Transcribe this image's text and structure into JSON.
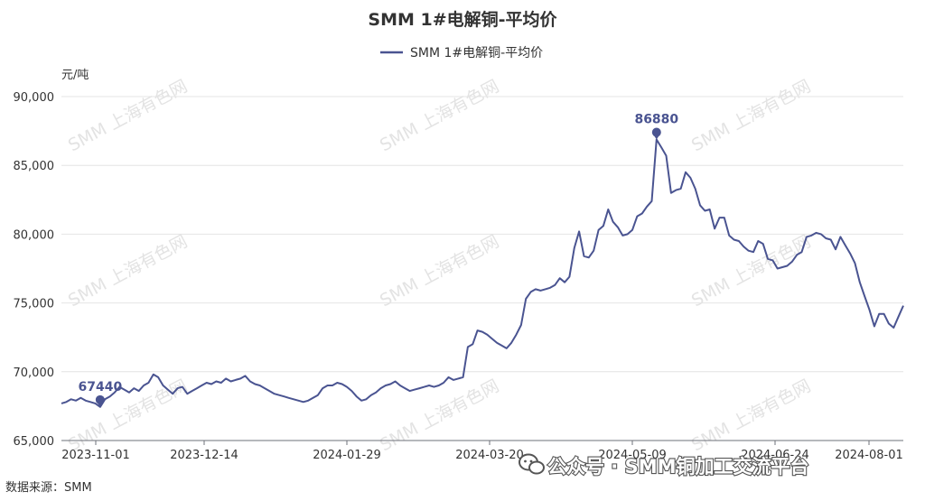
{
  "chart_data": {
    "type": "line",
    "title": "SMM 1#电解铜-平均价",
    "ylabel": "元/吨",
    "ylim": [
      65000,
      90000
    ],
    "yticks": [
      "65,000",
      "70,000",
      "75,000",
      "80,000",
      "85,000",
      "90,000"
    ],
    "xticks": [
      "2023-11-01",
      "2023-12-14",
      "2024-01-29",
      "2024-03-20",
      "2024-05-09",
      "2024-06-24",
      "2024-08-01"
    ],
    "legend_position": "top-center",
    "grid": true,
    "series": [
      {
        "name": "SMM 1#电解铜-平均价",
        "color": "#4a5491",
        "values": [
          67700,
          67800,
          68000,
          67900,
          68100,
          67900,
          67800,
          67700,
          67440,
          68000,
          68200,
          68500,
          68900,
          68700,
          68500,
          68800,
          68600,
          69000,
          69200,
          69800,
          69600,
          69000,
          68700,
          68400,
          68800,
          68900,
          68400,
          68600,
          68800,
          69000,
          69200,
          69100,
          69300,
          69200,
          69500,
          69300,
          69400,
          69500,
          69700,
          69300,
          69100,
          69000,
          68800,
          68600,
          68400,
          68300,
          68200,
          68100,
          68000,
          67900,
          67800,
          67900,
          68100,
          68300,
          68800,
          69000,
          69000,
          69200,
          69100,
          68900,
          68600,
          68200,
          67900,
          68000,
          68300,
          68500,
          68800,
          69000,
          69100,
          69300,
          69000,
          68800,
          68600,
          68700,
          68800,
          68900,
          69000,
          68900,
          69000,
          69200,
          69600,
          69400,
          69500,
          69600,
          71800,
          72000,
          73000,
          72900,
          72700,
          72400,
          72100,
          71900,
          71700,
          72100,
          72700,
          73400,
          75300,
          75800,
          76000,
          75900,
          76000,
          76100,
          76300,
          76800,
          76500,
          76900,
          79000,
          80200,
          78400,
          78300,
          78800,
          80300,
          80600,
          81800,
          80900,
          80500,
          79900,
          80000,
          80300,
          81300,
          81500,
          82000,
          82400,
          86880,
          86300,
          85700,
          83000,
          83200,
          83300,
          84500,
          84100,
          83300,
          82100,
          81700,
          81800,
          80400,
          81200,
          81200,
          79900,
          79600,
          79500,
          79100,
          78800,
          78700,
          79500,
          79300,
          78200,
          78100,
          77500,
          77600,
          77700,
          78000,
          78500,
          78700,
          79800,
          79900,
          80100,
          80000,
          79700,
          79600,
          78900,
          79800,
          79200,
          78600,
          77900,
          76500,
          75500,
          74500,
          73300,
          74200,
          74200,
          73500,
          73200,
          74000,
          74800
        ]
      }
    ],
    "annotations": [
      {
        "label": "86880",
        "value": 86880
      },
      {
        "label": "67440",
        "value": 67440
      }
    ]
  },
  "watermark": "SMM 上海有色网",
  "overlay_text": "公众号 · SMM铜加工交流平台",
  "source_text": "数据来源：SMM"
}
